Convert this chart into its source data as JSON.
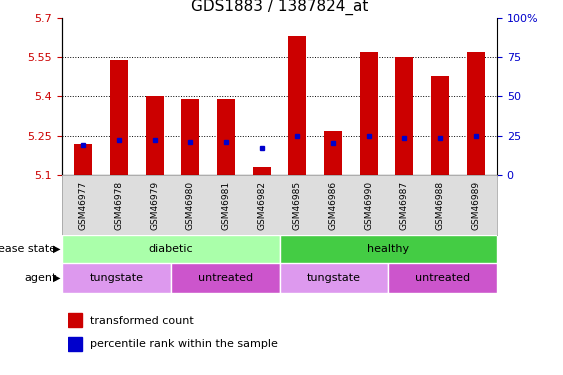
{
  "title": "GDS1883 / 1387824_at",
  "samples": [
    "GSM46977",
    "GSM46978",
    "GSM46979",
    "GSM46980",
    "GSM46981",
    "GSM46982",
    "GSM46985",
    "GSM46986",
    "GSM46990",
    "GSM46987",
    "GSM46988",
    "GSM46989"
  ],
  "transformed_count": [
    5.22,
    5.54,
    5.4,
    5.39,
    5.39,
    5.13,
    5.63,
    5.27,
    5.57,
    5.55,
    5.48,
    5.57
  ],
  "percentile_rank_y": [
    5.215,
    5.232,
    5.232,
    5.228,
    5.228,
    5.205,
    5.248,
    5.222,
    5.248,
    5.242,
    5.242,
    5.248
  ],
  "ymin": 5.1,
  "ymax": 5.7,
  "yticks": [
    5.1,
    5.25,
    5.4,
    5.55,
    5.7
  ],
  "ytick_labels": [
    "5.1",
    "5.25",
    "5.4",
    "5.55",
    "5.7"
  ],
  "grid_yticks": [
    5.25,
    5.4,
    5.55
  ],
  "right_yticks_pct": [
    0,
    25,
    50,
    75,
    100
  ],
  "right_ytick_labels": [
    "0",
    "25",
    "50",
    "75",
    "100%"
  ],
  "bar_color": "#cc0000",
  "dot_color": "#0000cc",
  "bar_bottom": 5.1,
  "disease_state_groups": [
    {
      "label": "diabetic",
      "start": 0,
      "end": 6,
      "color": "#aaffaa"
    },
    {
      "label": "healthy",
      "start": 6,
      "end": 12,
      "color": "#44cc44"
    }
  ],
  "agent_groups": [
    {
      "label": "tungstate",
      "start": 0,
      "end": 3,
      "color": "#dd99ee"
    },
    {
      "label": "untreated",
      "start": 3,
      "end": 6,
      "color": "#cc55cc"
    },
    {
      "label": "tungstate",
      "start": 6,
      "end": 9,
      "color": "#dd99ee"
    },
    {
      "label": "untreated",
      "start": 9,
      "end": 12,
      "color": "#cc55cc"
    }
  ],
  "legend_items": [
    {
      "label": "transformed count",
      "color": "#cc0000"
    },
    {
      "label": "percentile rank within the sample",
      "color": "#0000cc"
    }
  ],
  "left_label_color": "#cc0000",
  "right_label_color": "#0000cc",
  "title_fontsize": 11,
  "tick_fontsize": 8,
  "label_fontsize": 8
}
